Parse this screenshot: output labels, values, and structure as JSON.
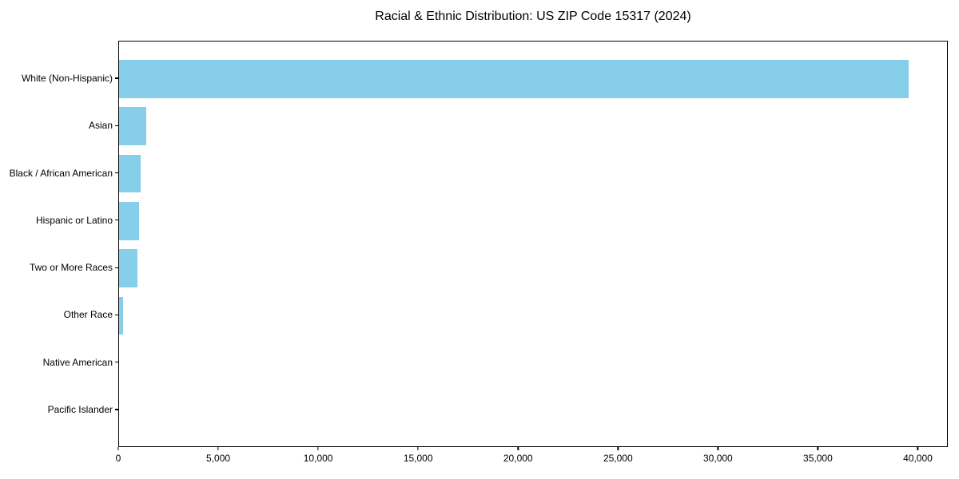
{
  "title": "Racial & Ethnic Distribution: US ZIP Code 15317 (2024)",
  "chart_data": {
    "type": "bar",
    "orientation": "horizontal",
    "title": "Racial & Ethnic Distribution: US ZIP Code 15317 (2024)",
    "xlabel": "",
    "ylabel": "",
    "categories": [
      "White (Non-Hispanic)",
      "Asian",
      "Black / African American",
      "Hispanic or Latino",
      "Two or More Races",
      "Other Race",
      "Native American",
      "Pacific Islander"
    ],
    "values": [
      39500,
      1350,
      1080,
      1010,
      900,
      180,
      0,
      0
    ],
    "xlim": [
      0,
      41500
    ],
    "x_ticks": [
      0,
      5000,
      10000,
      15000,
      20000,
      25000,
      30000,
      35000,
      40000
    ],
    "x_tick_labels": [
      "0",
      "5,000",
      "10,000",
      "15,000",
      "20,000",
      "25,000",
      "30,000",
      "35,000",
      "40,000"
    ],
    "bar_color": "#87CEEB",
    "axis_color": "#000000",
    "text_color": "#000000",
    "background_color": "#ffffff",
    "grid": false,
    "legend": null
  }
}
